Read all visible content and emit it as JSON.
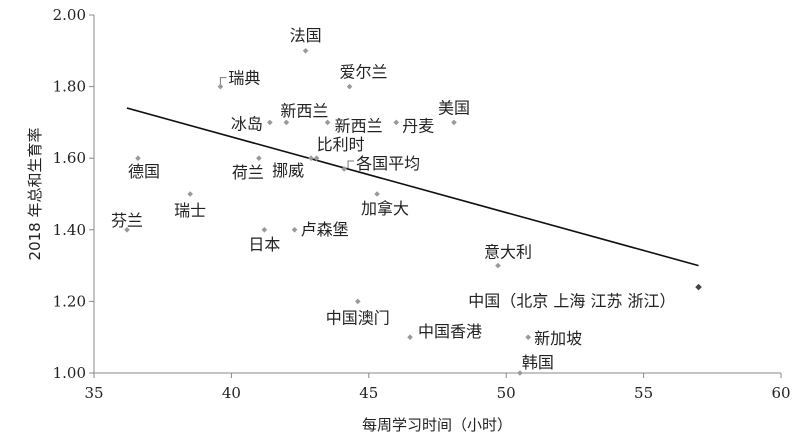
{
  "chart_data": {
    "type": "scatter",
    "title": "",
    "xlabel": "每周学习时间（小时）",
    "ylabel": "2018 年总和生育率",
    "xlim": [
      35,
      60
    ],
    "ylim": [
      1.0,
      2.0
    ],
    "xticks": [
      "35",
      "40",
      "45",
      "50",
      "55",
      "60"
    ],
    "yticks": [
      "1.00",
      "1.20",
      "1.40",
      "1.60",
      "1.80",
      "2.00"
    ],
    "grid": false,
    "legend": "none",
    "point_color": "#999999",
    "highlight_color": "#444444",
    "trendline": {
      "x": [
        36.2,
        57.0
      ],
      "y": [
        1.74,
        1.3
      ]
    },
    "points": [
      {
        "label": "法国",
        "x": 42.7,
        "y": 1.9
      },
      {
        "label": "瑞典",
        "x": 39.6,
        "y": 1.8
      },
      {
        "label": "爱尔兰",
        "x": 44.3,
        "y": 1.8
      },
      {
        "label": "冰岛",
        "x": 41.4,
        "y": 1.7
      },
      {
        "label": "新西兰",
        "x": 42.0,
        "y": 1.7
      },
      {
        "label": "新西兰",
        "x": 43.5,
        "y": 1.7
      },
      {
        "label": "丹麦",
        "x": 46.0,
        "y": 1.7
      },
      {
        "label": "美国",
        "x": 48.1,
        "y": 1.7
      },
      {
        "label": "德国",
        "x": 36.6,
        "y": 1.6
      },
      {
        "label": "荷兰",
        "x": 41.0,
        "y": 1.6
      },
      {
        "label": "挪威",
        "x": 42.9,
        "y": 1.6
      },
      {
        "label": "比利时",
        "x": 43.1,
        "y": 1.6
      },
      {
        "label": "各国平均",
        "x": 44.1,
        "y": 1.57
      },
      {
        "label": "瑞士",
        "x": 38.5,
        "y": 1.5
      },
      {
        "label": "加拿大",
        "x": 45.3,
        "y": 1.5
      },
      {
        "label": "芬兰",
        "x": 36.2,
        "y": 1.4
      },
      {
        "label": "日本",
        "x": 41.2,
        "y": 1.4
      },
      {
        "label": "卢森堡",
        "x": 42.3,
        "y": 1.4
      },
      {
        "label": "意大利",
        "x": 49.7,
        "y": 1.3
      },
      {
        "label": "中国（北京 上海 江苏 浙江）",
        "x": 57.0,
        "y": 1.24
      },
      {
        "label": "中国澳门",
        "x": 44.6,
        "y": 1.2
      },
      {
        "label": "中国香港",
        "x": 46.5,
        "y": 1.1
      },
      {
        "label": "新加坡",
        "x": 50.8,
        "y": 1.1
      },
      {
        "label": "韩国",
        "x": 50.5,
        "y": 1.0
      }
    ]
  }
}
